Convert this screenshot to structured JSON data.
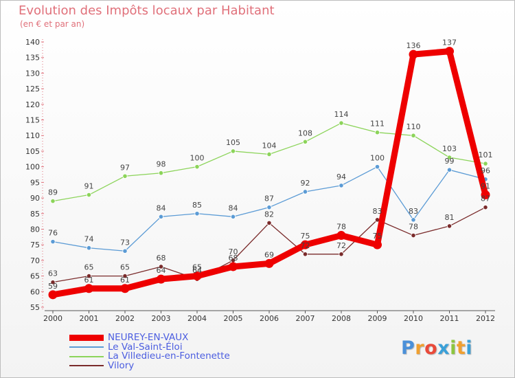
{
  "title": "Evolution des Impôts locaux par Habitant",
  "subtitle": "(en € et par an)",
  "logo": {
    "letters": [
      {
        "ch": "P",
        "color": "#4a90d9"
      },
      {
        "ch": "r",
        "color": "#f0a030"
      },
      {
        "ch": "o",
        "color": "#e94a3a"
      },
      {
        "ch": "x",
        "color": "#3aa0d8"
      },
      {
        "ch": "i",
        "color": "#8cc63f"
      },
      {
        "ch": "t",
        "color": "#f0a030"
      },
      {
        "ch": "i",
        "color": "#3aa0d8"
      }
    ]
  },
  "chart_data": {
    "type": "line",
    "title": "Evolution des Impôts locaux par Habitant",
    "subtitle": "(en € et par an)",
    "xlabel": "",
    "ylabel": "",
    "x": [
      2000,
      2001,
      2002,
      2003,
      2004,
      2005,
      2006,
      2007,
      2008,
      2009,
      2010,
      2011,
      2012
    ],
    "ylim": [
      55,
      140
    ],
    "yticks": [
      55,
      60,
      65,
      70,
      75,
      80,
      85,
      90,
      95,
      100,
      105,
      110,
      115,
      120,
      125,
      130,
      135,
      140
    ],
    "grid": false,
    "legend_position": "bottom-left",
    "series": [
      {
        "name": "NEUREY-EN-VAUX",
        "color": "#ee0000",
        "emphasis": true,
        "values": [
          59,
          61,
          61,
          64,
          65,
          68,
          69,
          75,
          78,
          75,
          136,
          137,
          91
        ]
      },
      {
        "name": "Le Val-Saint-Éloi",
        "color": "#5b9bd5",
        "emphasis": false,
        "values": [
          76,
          74,
          73,
          84,
          85,
          84,
          87,
          92,
          94,
          100,
          83,
          99,
          96
        ]
      },
      {
        "name": "La Villedieu-en-Fontenette",
        "color": "#8cd45a",
        "emphasis": false,
        "values": [
          89,
          91,
          97,
          98,
          100,
          105,
          104,
          108,
          114,
          111,
          110,
          103,
          101
        ]
      },
      {
        "name": "Vilory",
        "color": "#7a2b2b",
        "emphasis": false,
        "values": [
          63,
          65,
          65,
          68,
          64,
          70,
          82,
          72,
          72,
          83,
          78,
          81,
          87
        ]
      }
    ]
  }
}
